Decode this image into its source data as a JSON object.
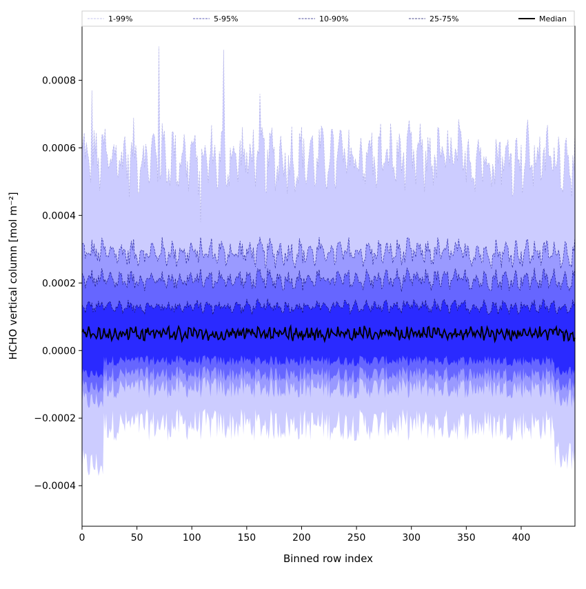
{
  "chart_data": {
    "type": "area",
    "xlabel": "Binned row index",
    "ylabel": "HCHO vertical column [mol m⁻²]",
    "xlim": [
      0,
      449
    ],
    "ylim": [
      -0.00052,
      0.00096
    ],
    "grid": false,
    "legend_position": "top",
    "x_ticks": [
      0,
      50,
      100,
      150,
      200,
      250,
      300,
      350,
      400
    ],
    "x_tick_labels": [
      "0",
      "50",
      "100",
      "150",
      "200",
      "250",
      "300",
      "350",
      "400"
    ],
    "y_ticks": [
      -0.0004,
      -0.0002,
      0.0,
      0.0002,
      0.0004,
      0.0006,
      0.0008
    ],
    "y_tick_labels": [
      "−0.0004",
      "−0.0002",
      "0.0000",
      "0.0002",
      "0.0004",
      "0.0006",
      "0.0008"
    ],
    "n_rows": 450,
    "bands": [
      {
        "name": "1-99%",
        "fill": "#ccccff",
        "line": "#b4b4e8",
        "upper_mean": 0.00057,
        "upper_amp": 5e-05,
        "lower_mean": -0.00022,
        "lower_amp": 3e-05
      },
      {
        "name": "5-95%",
        "fill": "#9a9aff",
        "line": "#2a2aa0",
        "upper_mean": 0.00029,
        "upper_amp": 2e-05,
        "lower_mean": -0.00011,
        "lower_amp": 2e-05
      },
      {
        "name": "10-90%",
        "fill": "#6666ff",
        "line": "#1a1a80",
        "upper_mean": 0.00021,
        "upper_amp": 1.5e-05,
        "lower_mean": -7e-05,
        "lower_amp": 1.5e-05
      },
      {
        "name": "25-75%",
        "fill": "#2a2aff",
        "line": "#10106a",
        "upper_mean": 0.00013,
        "upper_amp": 1e-05,
        "lower_mean": -3e-05,
        "lower_amp": 1e-05
      }
    ],
    "median": {
      "name": "Median",
      "color": "#000000",
      "mean": 5e-05,
      "amp": 1.5e-05
    },
    "spikes": [
      {
        "x": 70,
        "upper": 0.0009
      },
      {
        "x": 129,
        "upper": 0.00089
      },
      {
        "x": 162,
        "upper": 0.00076
      },
      {
        "x": 9,
        "upper": 0.00077
      },
      {
        "x": 108,
        "upper": 0.00038
      }
    ]
  }
}
